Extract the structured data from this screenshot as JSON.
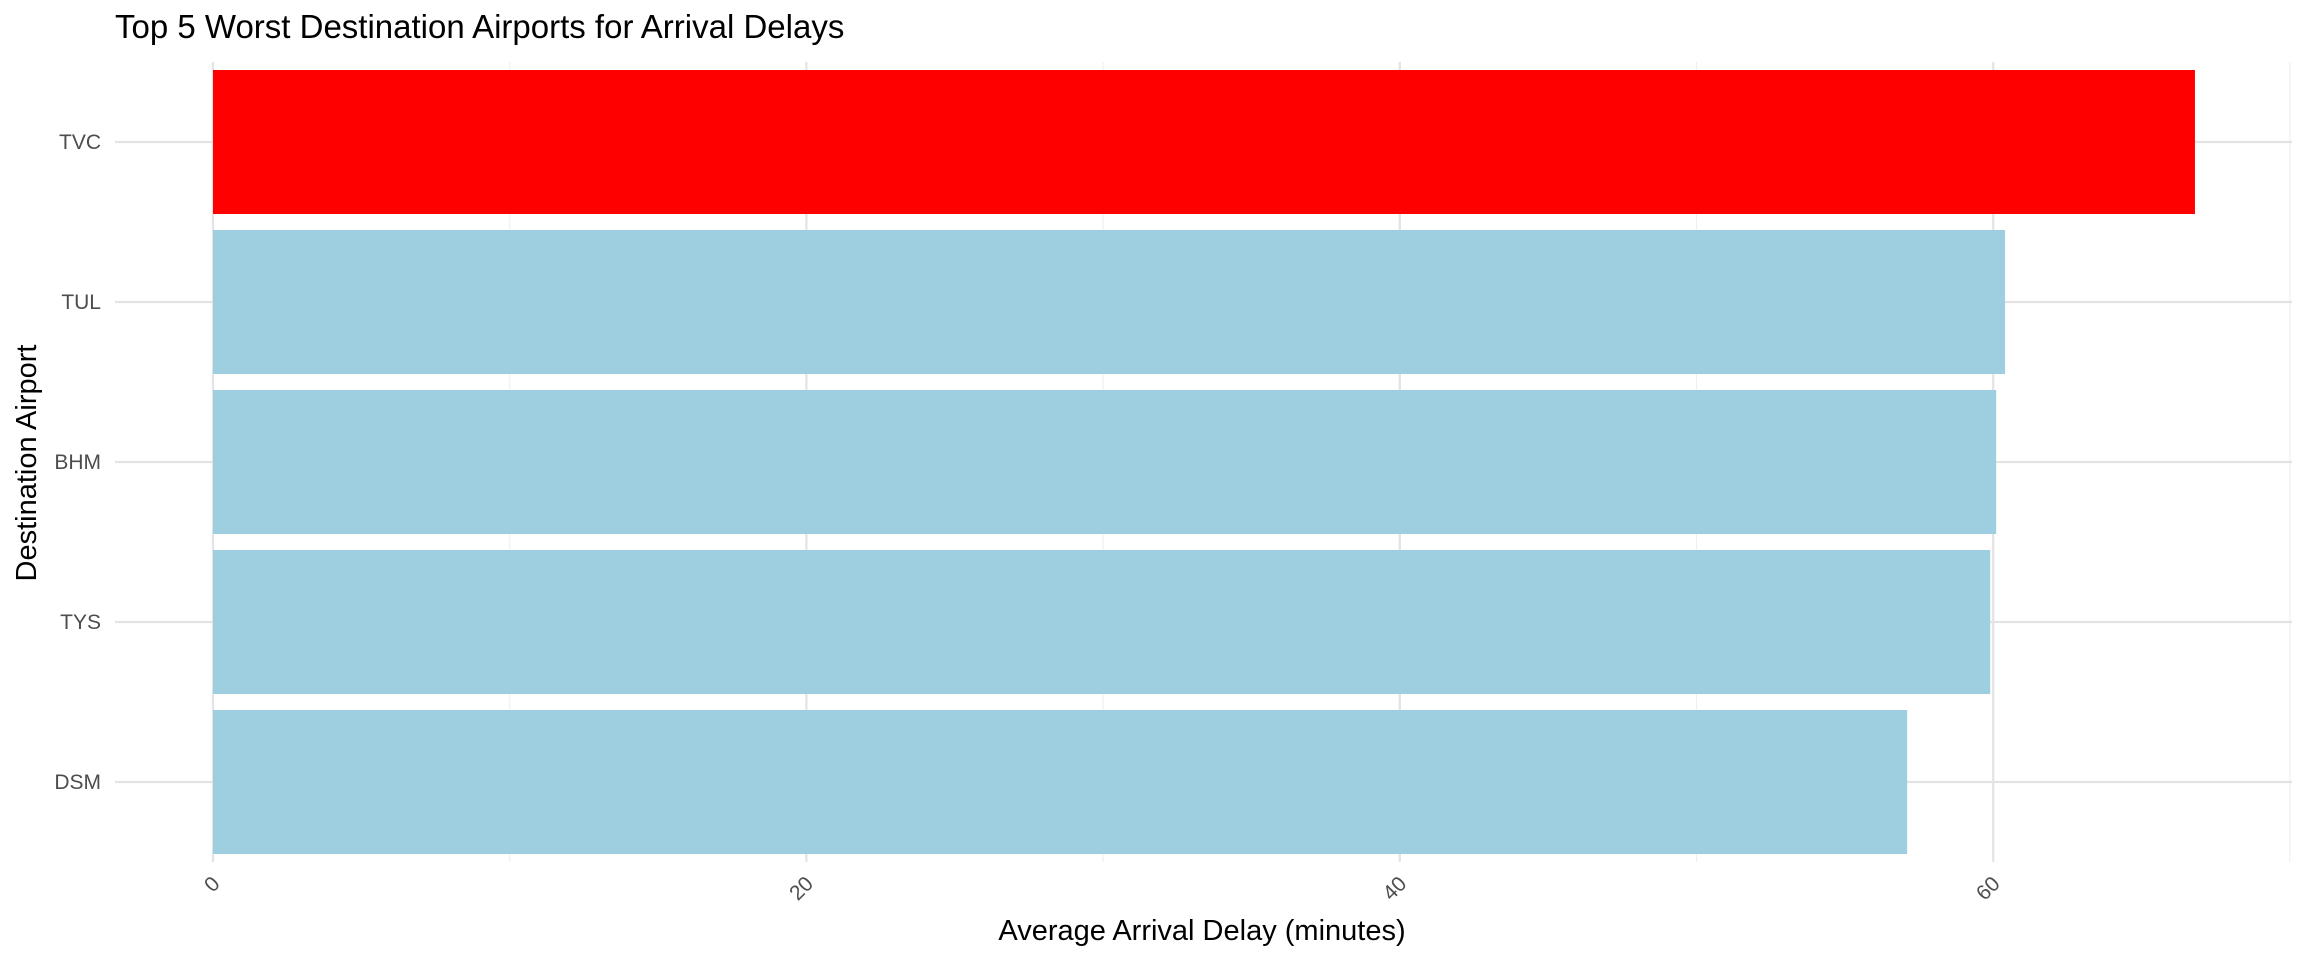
{
  "chart_data": {
    "type": "bar",
    "orientation": "horizontal",
    "title": "Top 5 Worst Destination Airports for Arrival Delays",
    "xlabel": "Average Arrival Delay (minutes)",
    "ylabel": "Destination Airport",
    "categories": [
      "TVC",
      "TUL",
      "BHM",
      "TYS",
      "DSM"
    ],
    "values": [
      66.8,
      60.4,
      60.1,
      59.9,
      57.1
    ],
    "highlight": "TVC",
    "colors": {
      "highlight": "#ff0000",
      "default": "#9ecfe0"
    },
    "xlim": [
      0,
      70
    ],
    "xticks": [
      "0",
      "20",
      "40",
      "60"
    ],
    "grid": true,
    "legend": "none"
  }
}
